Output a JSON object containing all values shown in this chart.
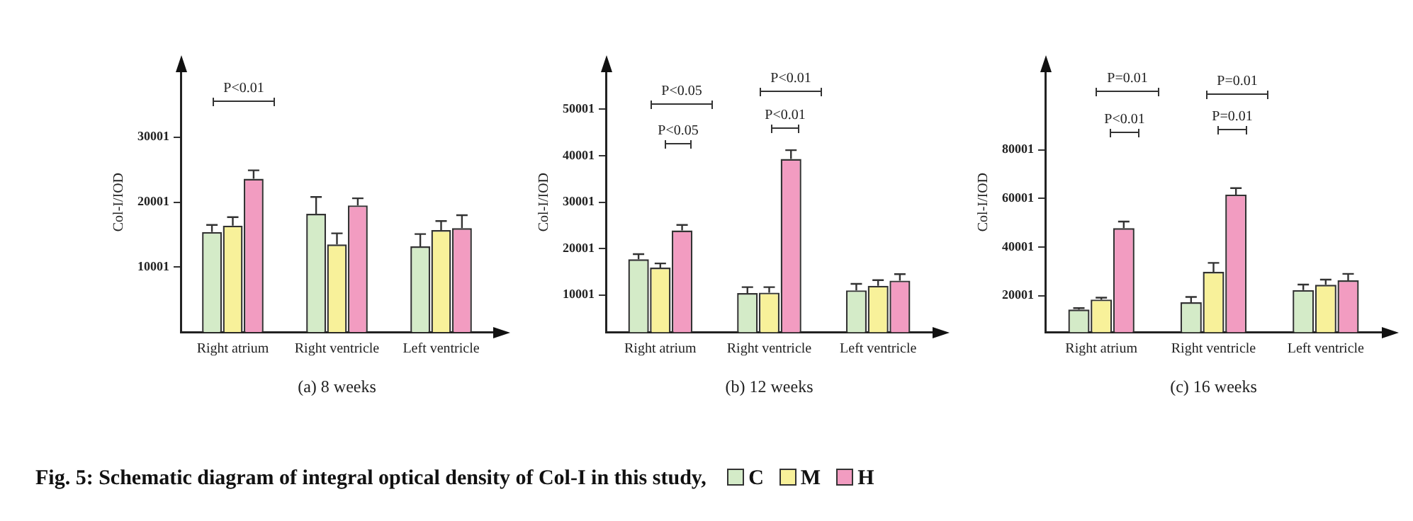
{
  "chart_data": [
    {
      "type": "bar",
      "title": "Fig. 5: Schematic diagram of integral optical density of Col-I in this study,",
      "xlabel": "(a) 8 weeks",
      "ylabel": "Col-I/IOD",
      "categories": [
        "Right atrium",
        "Right ventricle",
        "Left ventricle"
      ],
      "ylim": [
        0,
        40000
      ],
      "yticks": [
        10001,
        20001,
        30001
      ],
      "legend": "bottom",
      "series": [
        {
          "name": "C",
          "color": "#d4ebc8",
          "values": [
            15400,
            18200,
            13200
          ],
          "errors": [
            [
              15400,
              16500
            ],
            [
              18200,
              20800
            ],
            [
              13200,
              15100
            ]
          ]
        },
        {
          "name": "M",
          "color": "#f8f19a",
          "values": [
            16400,
            13500,
            15700
          ],
          "errors": [
            [
              16400,
              17700
            ],
            [
              13500,
              15200
            ],
            [
              15700,
              17100
            ]
          ]
        },
        {
          "name": "H",
          "color": "#f29cc1",
          "values": [
            23600,
            19500,
            16000
          ],
          "errors": [
            [
              23600,
              24900
            ],
            [
              19500,
              20600
            ],
            [
              16000,
              18000
            ]
          ]
        }
      ],
      "annotations": [
        "P<0.01"
      ]
    },
    {
      "type": "bar",
      "xlabel": "(b) 12 weeks",
      "ylabel": "Col-I/IOD",
      "categories": [
        "Right atrium",
        "Right ventricle",
        "Left ventricle"
      ],
      "ylim": [
        2000,
        58000
      ],
      "yticks": [
        10001,
        20001,
        30001,
        40001,
        50001
      ],
      "series": [
        {
          "color": "#d4ebc8",
          "values": [
            17700,
            10400,
            11000
          ],
          "errors": [
            [
              17700,
              18800
            ],
            [
              10400,
              11700
            ],
            [
              11000,
              12400
            ]
          ]
        },
        {
          "color": "#f8f19a",
          "values": [
            15900,
            10500,
            12000
          ],
          "errors": [
            [
              15900,
              16800
            ],
            [
              10500,
              11700
            ],
            [
              12000,
              13200
            ]
          ]
        },
        {
          "color": "#f29cc1",
          "values": [
            23900,
            39300,
            13100
          ],
          "errors": [
            [
              23900,
              25100
            ],
            [
              39300,
              41200
            ],
            [
              13100,
              14500
            ]
          ]
        }
      ],
      "annotations": [
        "P<0.05",
        "P<0.05",
        "P<0.01",
        "P<0.01"
      ]
    },
    {
      "type": "bar",
      "xlabel": "(c) 16 weeks",
      "ylabel": "Col-I/IOD",
      "categories": [
        "Right atrium",
        "Right ventricle",
        "Left ventricle"
      ],
      "ylim": [
        5000,
        112000
      ],
      "yticks": [
        20001,
        40001,
        60001,
        80001
      ],
      "series": [
        {
          "color": "#d4ebc8",
          "values": [
            14300,
            17300,
            22300
          ],
          "errors": [
            [
              14300,
              14900
            ],
            [
              17300,
              19500
            ],
            [
              22300,
              24600
            ]
          ]
        },
        {
          "color": "#f8f19a",
          "values": [
            18400,
            29800,
            24500
          ],
          "errors": [
            [
              18400,
              19200
            ],
            [
              29800,
              33500
            ],
            [
              24500,
              26600
            ]
          ]
        },
        {
          "color": "#f29cc1",
          "values": [
            47800,
            61600,
            26300
          ],
          "errors": [
            [
              47800,
              50500
            ],
            [
              61600,
              64300
            ],
            [
              26300,
              29000
            ]
          ]
        }
      ],
      "annotations": [
        "P=0.01",
        "P<0.01",
        "P=0.01",
        "P=0.01"
      ]
    }
  ]
}
